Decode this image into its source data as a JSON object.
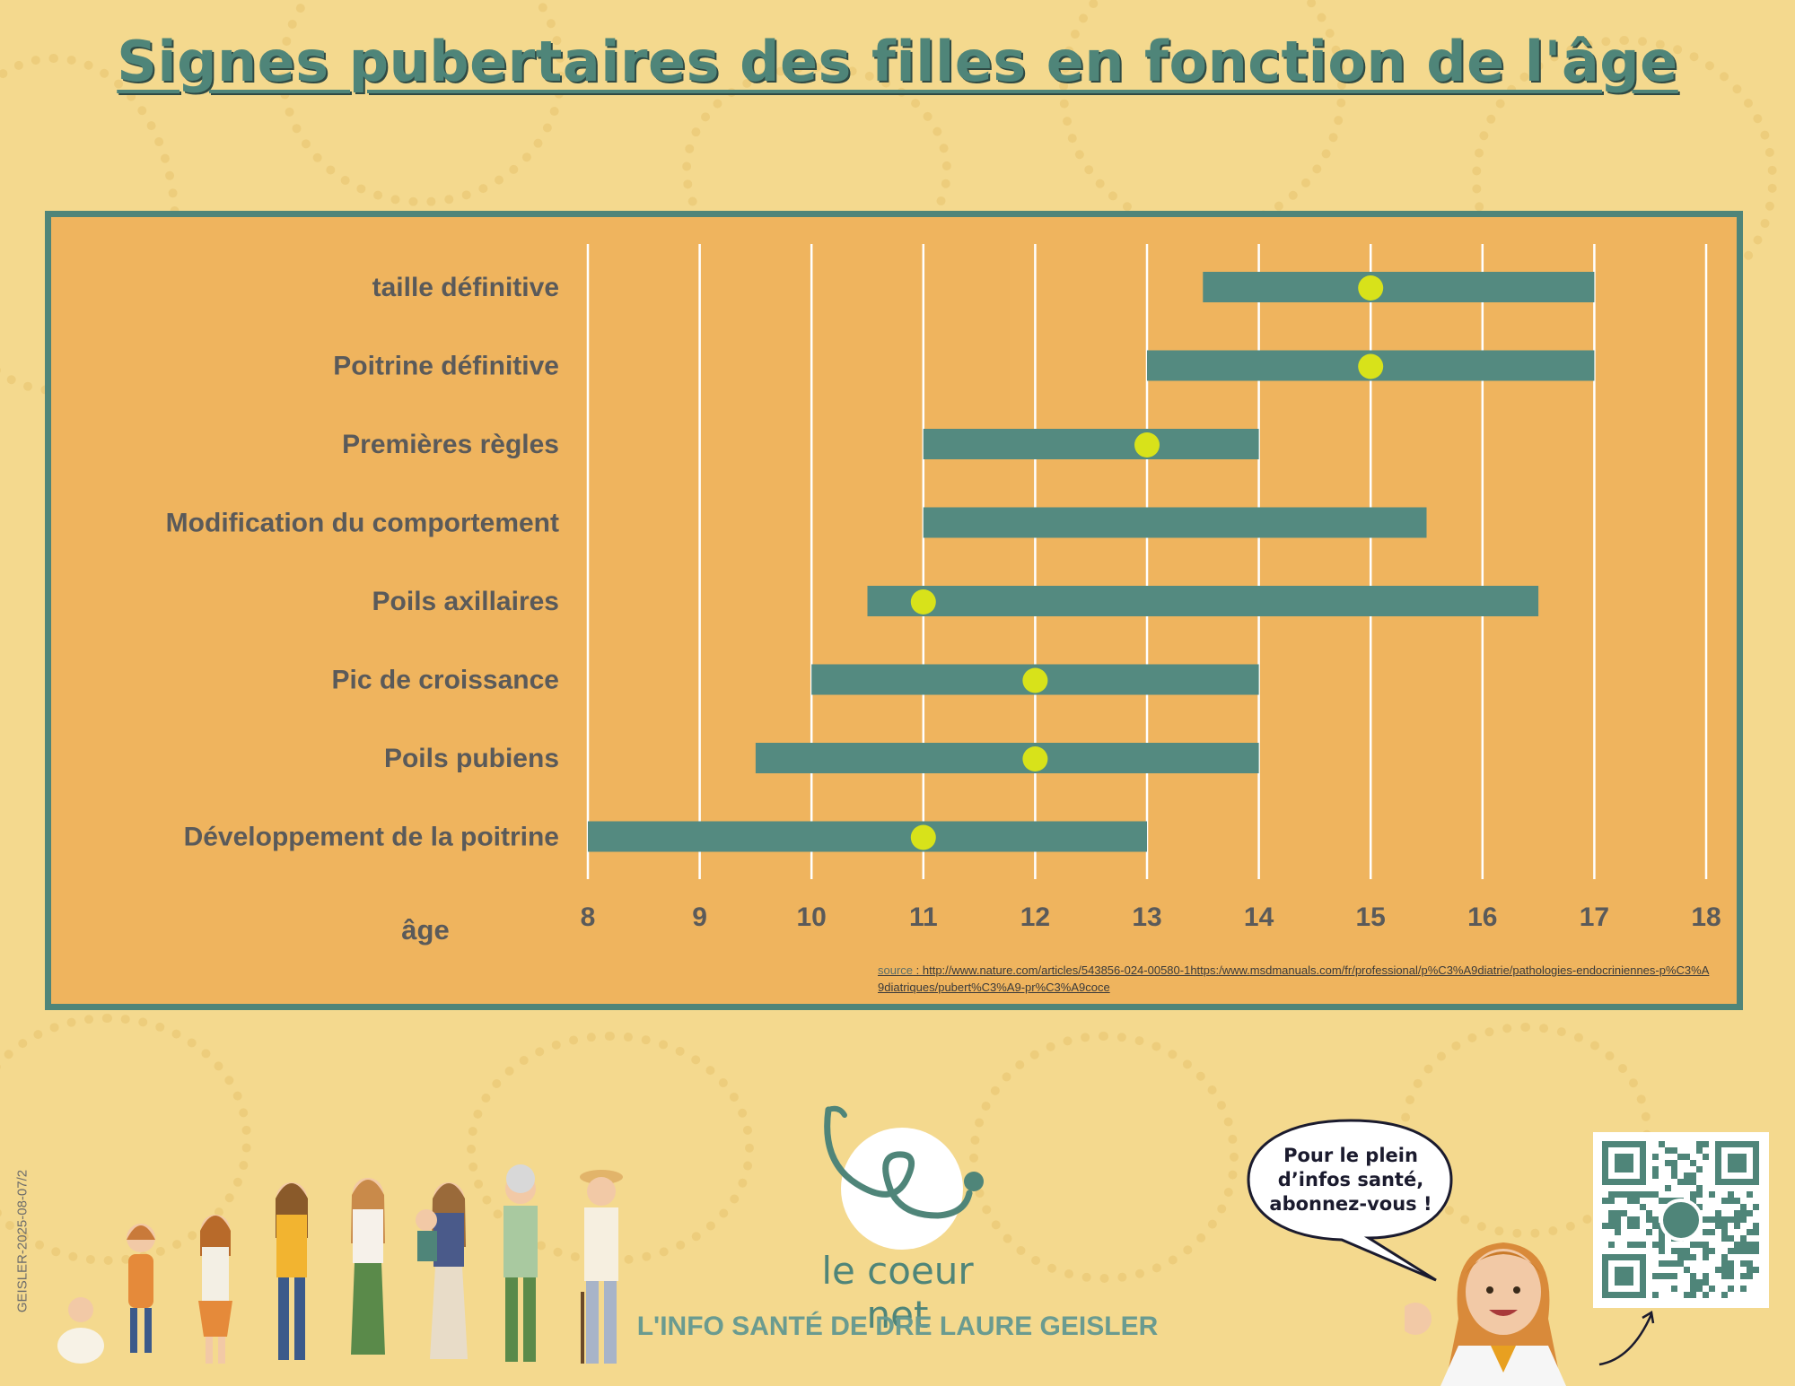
{
  "title": "Signes pubertaires des filles en fonction de l'âge",
  "chart_data": {
    "type": "bar",
    "orientation": "horizontal-range",
    "xlabel": "âge",
    "xlim": [
      8,
      18
    ],
    "x_ticks": [
      8,
      9,
      10,
      11,
      12,
      13,
      14,
      15,
      16,
      17,
      18
    ],
    "grid": true,
    "categories": [
      "taille définitive",
      "Poitrine définitive",
      "Premières règles",
      "Modification du comportement",
      "Poils axillaires",
      "Pic de croissance",
      "Poils pubiens",
      "Développement de la poitrine"
    ],
    "series": [
      {
        "ranges": [
          [
            13.5,
            17
          ],
          [
            13,
            17
          ],
          [
            11,
            14
          ],
          [
            11,
            15.5
          ],
          [
            10.5,
            16.5
          ],
          [
            10,
            14
          ],
          [
            9.5,
            14
          ],
          [
            8,
            13
          ]
        ],
        "markers": [
          15,
          15,
          13,
          null,
          11,
          12,
          12,
          11
        ]
      }
    ],
    "colors": {
      "bar": "#548a80",
      "marker": "#d8e21a",
      "grid": "#ffffff",
      "panel": "#efb45e",
      "border": "#4f8579"
    }
  },
  "source": {
    "label": "source",
    "text": " : http://www.nature.com/articles/543856-024-00580-1https:/www.msdmanuals.com/fr/professional/p%C3%A9diatrie/pathologies-endocriniennes-p%C3%A9diatriques/pubert%C3%A9-pr%C3%A9coce"
  },
  "brand": {
    "name": "le coeur net",
    "tagline": "L'INFO SANTÉ DE DRE LAURE GEISLER",
    "icon": "stethoscope-heart-icon"
  },
  "speech_bubble": "Pour le plein d’infos santé, abonnez-vous !",
  "reference": "GEISLER-2025-08-07/2"
}
